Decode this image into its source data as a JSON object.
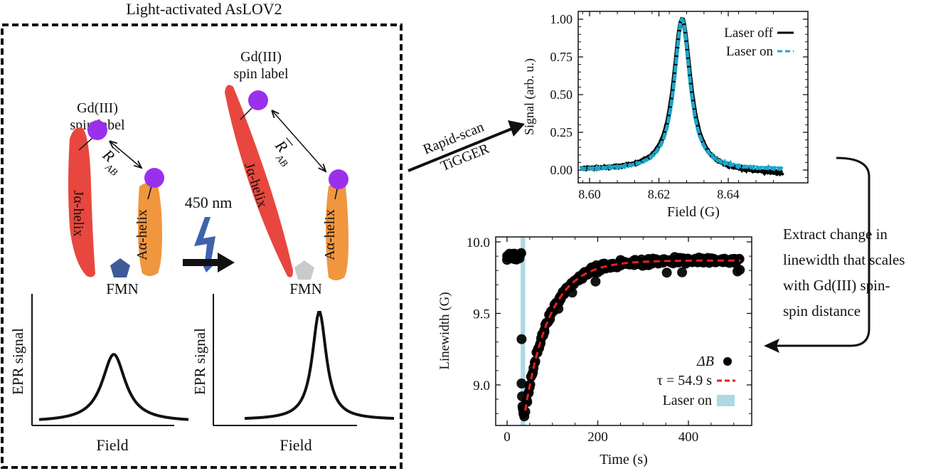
{
  "figure": {
    "panel_title": "Light-activated AsLOV2",
    "colors": {
      "j_helix": "#e8473f",
      "a_helix": "#f0963f",
      "spin_label": "#9b30ec",
      "fmn_dark": "#3d5a99",
      "fmn_light": "#c9cacc",
      "lightning": "#3e63ad",
      "laser_off": "#000000",
      "laser_on": "#19a7c9",
      "fit": "#e8201d",
      "laser_band": "#add8e6"
    },
    "dark_state": {
      "spin_label_title_line1": "Gd(III)",
      "spin_label_title_line2": "spin label",
      "distance_label": "R",
      "distance_subscript": "AB",
      "j_helix_label": "Jα-helix",
      "a_helix_label": "Aα-helix",
      "fmn_label": "FMN",
      "epr_ylabel": "EPR signal",
      "epr_xlabel": "Field"
    },
    "light_state": {
      "spin_label_title_line1": "Gd(III)",
      "spin_label_title_line2": "spin label",
      "distance_label": "R",
      "distance_subscript": "AB",
      "j_helix_label": "Jα-helix",
      "a_helix_label": "Aα-helix",
      "fmn_label": "FMN",
      "epr_ylabel": "EPR signal",
      "epr_xlabel": "Field"
    },
    "excitation_label": "450 nm",
    "method_label_top": "Rapid-scan",
    "method_label_bottom": "TiGGER",
    "extract_text": [
      "Extract change in",
      "linewidth that scales",
      "with Gd(III) spin-",
      "spin distance"
    ]
  },
  "chart_data": [
    {
      "type": "line",
      "title": "",
      "xlabel": "Field (G)",
      "ylabel": "Signal (arb. u.)",
      "xlim": [
        8.597,
        8.656
      ],
      "ylim": [
        -0.05,
        1.05
      ],
      "xticks": [
        8.6,
        8.62,
        8.64
      ],
      "xtick_labels": [
        "8.60",
        "8.62",
        "8.64"
      ],
      "yticks": [
        0.0,
        0.25,
        0.5,
        0.75,
        1.0
      ],
      "ytick_labels": [
        "0.00",
        "0.25",
        "0.50",
        "0.75",
        "1.00"
      ],
      "grid": false,
      "legend_position": "top-right",
      "series": [
        {
          "name": "Laser off",
          "style": "solid",
          "color": "#000000",
          "center": 8.6267,
          "hwhm": 0.00295,
          "x_range": [
            8.5973,
            8.6557
          ],
          "baseline_slope_end": -0.03
        },
        {
          "name": "Laser on",
          "style": "dashed",
          "color": "#19a7c9",
          "center": 8.6267,
          "hwhm": 0.00275,
          "x_range": [
            8.5973,
            8.6557
          ],
          "baseline_slope_end": 0.0
        }
      ]
    },
    {
      "type": "scatter",
      "title": "",
      "xlabel": "Time (s)",
      "ylabel": "Linewidth (G)",
      "xlim": [
        -25,
        540
      ],
      "ylim": [
        8.76,
        10.04
      ],
      "xticks": [
        0,
        200,
        400
      ],
      "xtick_labels": [
        "0",
        "200",
        "400"
      ],
      "yticks": [
        9.0,
        9.5,
        10.0
      ],
      "ytick_labels": [
        "9.0",
        "9.5",
        "10.0"
      ],
      "grid": false,
      "legend_position": "bottom-right",
      "laser_on_interval": [
        30,
        40
      ],
      "fit": {
        "name": "τ = 54.9 s",
        "tau": 54.9,
        "t0": 40,
        "y0": 8.82,
        "y_inf": 9.87,
        "x_range": [
          40,
          515
        ]
      },
      "legend": [
        "ΔB",
        "τ = 54.9 s",
        "Laser on"
      ],
      "points_before_laser": {
        "x_range": [
          0,
          35
        ],
        "y_mean": 9.9,
        "y_spread": 0.06
      },
      "points_during_laser": [
        {
          "x": 32,
          "y": 9.32
        },
        {
          "x": 32,
          "y": 9.01
        },
        {
          "x": 33,
          "y": 8.92
        },
        {
          "x": 34,
          "y": 8.85
        },
        {
          "x": 36,
          "y": 8.8
        },
        {
          "x": 38,
          "y": 8.78
        },
        {
          "x": 35,
          "y": 8.83
        }
      ],
      "points_after": {
        "x_range": [
          40,
          515
        ],
        "noise": 0.035,
        "count": 260
      }
    }
  ]
}
